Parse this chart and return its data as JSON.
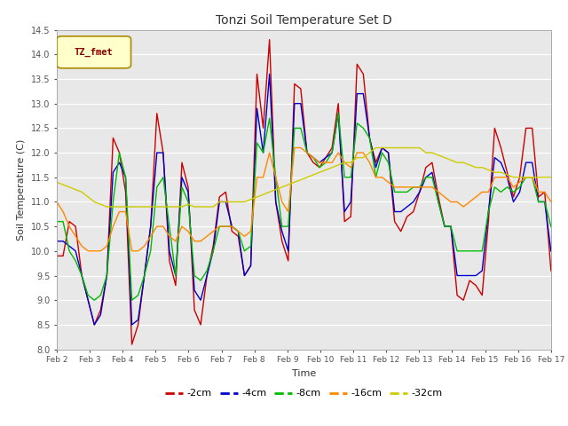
{
  "title": "Tonzi Soil Temperature Set D",
  "xlabel": "Time",
  "ylabel": "Soil Temperature (C)",
  "ylim": [
    8.0,
    14.5
  ],
  "yticks": [
    8.0,
    8.5,
    9.0,
    9.5,
    10.0,
    10.5,
    11.0,
    11.5,
    12.0,
    12.5,
    13.0,
    13.5,
    14.0,
    14.5
  ],
  "xtick_labels": [
    "Feb 2",
    "Feb 3",
    "Feb 4",
    "Feb 5",
    "Feb 6",
    "Feb 7",
    "Feb 8",
    "Feb 9",
    "Feb 10",
    "Feb 11",
    "Feb 12",
    "Feb 13",
    "Feb 14",
    "Feb 15",
    "Feb 16",
    "Feb 17"
  ],
  "colors": {
    "-2cm": "#cc0000",
    "-4cm": "#0000cc",
    "-8cm": "#00bb00",
    "-16cm": "#ff8800",
    "-32cm": "#cccc00"
  },
  "legend_label": "TZ_fmet",
  "bg_color": "#e8e8e8",
  "grid_color": "#ffffff",
  "series": {
    "-2cm": [
      9.9,
      9.9,
      10.6,
      10.5,
      9.5,
      9.0,
      8.5,
      8.8,
      9.5,
      12.3,
      12.0,
      11.2,
      8.1,
      8.5,
      9.5,
      10.5,
      12.8,
      12.0,
      9.8,
      9.3,
      11.8,
      11.3,
      8.8,
      8.5,
      9.5,
      10.1,
      11.1,
      11.2,
      10.4,
      10.3,
      9.5,
      9.7,
      13.6,
      12.5,
      14.3,
      11.0,
      10.2,
      9.8,
      13.4,
      13.3,
      12.0,
      11.8,
      11.7,
      11.9,
      12.1,
      13.0,
      10.6,
      10.7,
      13.8,
      13.6,
      12.3,
      11.8,
      12.1,
      12.0,
      10.6,
      10.4,
      10.7,
      10.8,
      11.2,
      11.7,
      11.8,
      11.1,
      10.5,
      10.5,
      9.1,
      9.0,
      9.4,
      9.3,
      9.1,
      10.6,
      12.5,
      12.1,
      11.6,
      11.1,
      11.5,
      12.5,
      12.5,
      11.1,
      11.2,
      9.6
    ],
    "-4cm": [
      10.2,
      10.2,
      10.1,
      10.0,
      9.5,
      9.0,
      8.5,
      8.7,
      9.5,
      11.6,
      11.8,
      11.5,
      8.5,
      8.6,
      9.5,
      10.5,
      12.0,
      12.0,
      10.0,
      9.5,
      11.5,
      11.2,
      9.2,
      9.0,
      9.5,
      10.0,
      11.0,
      11.0,
      10.5,
      10.4,
      9.5,
      9.7,
      12.9,
      12.0,
      13.6,
      11.0,
      10.4,
      10.0,
      13.0,
      13.0,
      12.0,
      11.9,
      11.8,
      11.9,
      12.0,
      12.8,
      10.8,
      11.0,
      13.2,
      13.2,
      12.3,
      11.7,
      12.1,
      12.0,
      10.8,
      10.8,
      10.9,
      11.0,
      11.2,
      11.5,
      11.6,
      11.0,
      10.5,
      10.5,
      9.5,
      9.5,
      9.5,
      9.5,
      9.6,
      10.8,
      11.9,
      11.8,
      11.5,
      11.0,
      11.2,
      11.8,
      11.8,
      11.0,
      11.0,
      10.0
    ],
    "-8cm": [
      10.6,
      10.6,
      10.0,
      9.8,
      9.5,
      9.1,
      9.0,
      9.1,
      9.5,
      11.0,
      12.0,
      11.5,
      9.0,
      9.1,
      9.5,
      10.0,
      11.3,
      11.5,
      10.5,
      9.5,
      11.3,
      11.0,
      9.5,
      9.4,
      9.6,
      10.0,
      10.5,
      10.5,
      10.5,
      10.4,
      10.0,
      10.1,
      12.2,
      12.0,
      12.7,
      11.5,
      10.5,
      10.5,
      12.5,
      12.5,
      12.0,
      11.9,
      11.7,
      11.8,
      12.0,
      12.8,
      11.5,
      11.5,
      12.6,
      12.5,
      12.3,
      11.5,
      12.0,
      11.8,
      11.2,
      11.2,
      11.2,
      11.3,
      11.3,
      11.5,
      11.5,
      11.0,
      10.5,
      10.5,
      10.0,
      10.0,
      10.0,
      10.0,
      10.0,
      10.8,
      11.3,
      11.2,
      11.3,
      11.2,
      11.3,
      11.5,
      11.5,
      11.0,
      11.0,
      10.5
    ],
    "-16cm": [
      11.0,
      10.8,
      10.5,
      10.3,
      10.1,
      10.0,
      10.0,
      10.0,
      10.1,
      10.5,
      10.8,
      10.8,
      10.0,
      10.0,
      10.1,
      10.3,
      10.5,
      10.5,
      10.3,
      10.2,
      10.5,
      10.4,
      10.2,
      10.2,
      10.3,
      10.4,
      10.5,
      10.5,
      10.5,
      10.4,
      10.3,
      10.4,
      11.5,
      11.5,
      12.0,
      11.5,
      11.0,
      10.8,
      12.1,
      12.1,
      12.0,
      11.9,
      11.8,
      11.8,
      11.8,
      12.0,
      11.8,
      11.7,
      12.0,
      12.0,
      11.8,
      11.5,
      11.5,
      11.4,
      11.3,
      11.3,
      11.3,
      11.3,
      11.3,
      11.3,
      11.3,
      11.2,
      11.1,
      11.0,
      11.0,
      10.9,
      11.0,
      11.1,
      11.2,
      11.2,
      11.5,
      11.5,
      11.5,
      11.3,
      11.4,
      11.5,
      11.5,
      11.2,
      11.2,
      11.0
    ],
    "-32cm": [
      11.4,
      11.35,
      11.3,
      11.25,
      11.2,
      11.1,
      11.0,
      10.95,
      10.9,
      10.9,
      10.9,
      10.9,
      10.9,
      10.9,
      10.9,
      10.9,
      10.9,
      10.9,
      10.9,
      10.9,
      10.9,
      10.95,
      10.9,
      10.9,
      10.9,
      10.9,
      11.0,
      11.0,
      11.0,
      11.0,
      11.0,
      11.05,
      11.1,
      11.15,
      11.2,
      11.25,
      11.3,
      11.35,
      11.4,
      11.45,
      11.5,
      11.55,
      11.6,
      11.65,
      11.7,
      11.75,
      11.8,
      11.8,
      11.9,
      11.9,
      12.0,
      12.1,
      12.1,
      12.1,
      12.1,
      12.1,
      12.1,
      12.1,
      12.1,
      12.0,
      12.0,
      11.95,
      11.9,
      11.85,
      11.8,
      11.8,
      11.75,
      11.7,
      11.7,
      11.65,
      11.6,
      11.6,
      11.55,
      11.5,
      11.5,
      11.5,
      11.5,
      11.5,
      11.5,
      11.5
    ]
  }
}
